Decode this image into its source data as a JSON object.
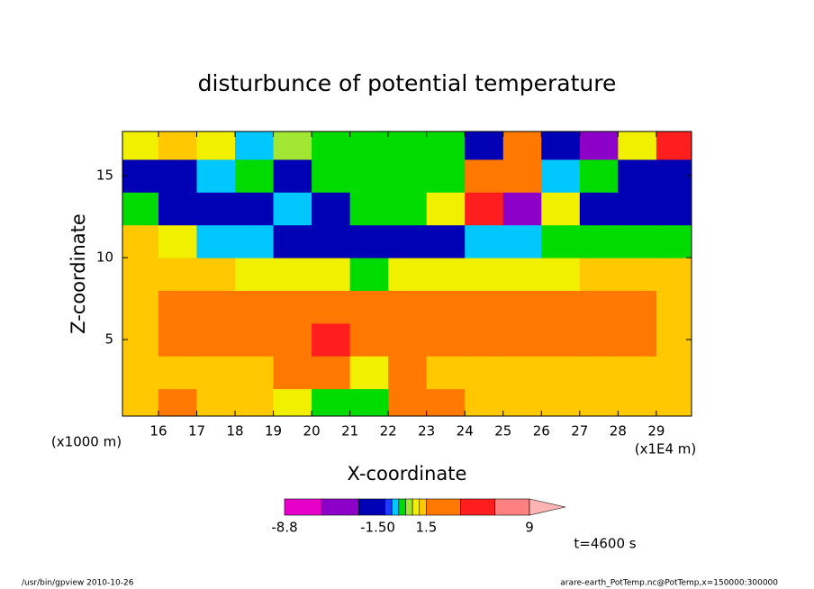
{
  "chart_data": {
    "type": "contour",
    "title": "disturbunce of potential temperature",
    "x_label": "X-coordinate",
    "y_label": "Z-coordinate",
    "x_unit_left": "(x1000 m)",
    "x_unit_right": "(x1E4 m)",
    "time_label": "t=4600 s",
    "footer_left": "/usr/bin/gpview  2010-10-26",
    "footer_right": "arare-earth_PotTemp.nc@PotTemp,x=150000:300000",
    "xlim": [
      15.06,
      29.92
    ],
    "ylim": [
      0.33,
      17.7
    ],
    "xticks": [
      16,
      17,
      18,
      19,
      20,
      21,
      22,
      23,
      24,
      25,
      26,
      27,
      28,
      29
    ],
    "yticks": [
      5,
      10,
      15
    ],
    "x": [
      15.5,
      16.5,
      17.5,
      18.5,
      19.5,
      20.5,
      21.5,
      22.5,
      23.5,
      24.5,
      25.5,
      26.5,
      27.5,
      28.5,
      29.5
    ],
    "y": [
      1,
      3,
      5,
      7,
      9,
      11,
      13,
      15,
      17
    ],
    "z": [
      [
        1.2,
        2,
        1.2,
        1.2,
        0.8,
        -0.2,
        -0.3,
        2,
        2,
        1.2,
        1.2,
        1.2,
        1.2,
        1.2,
        1.2
      ],
      [
        1.2,
        1.2,
        1.2,
        1.2,
        1.5,
        2.5,
        0.5,
        2,
        1.2,
        1,
        1.2,
        1.2,
        1.2,
        1.2,
        1
      ],
      [
        1.2,
        2,
        2.5,
        2.5,
        2.5,
        4.5,
        2,
        2,
        2.5,
        2.5,
        2.5,
        2.5,
        2.5,
        2,
        1.2
      ],
      [
        1.2,
        2.5,
        2.5,
        2.5,
        2.5,
        3,
        2.5,
        2.5,
        2.5,
        2.5,
        2.5,
        2.5,
        2.5,
        2.5,
        1.3
      ],
      [
        1.2,
        1.2,
        1,
        0.8,
        0.5,
        0.5,
        -0.2,
        0.5,
        0.5,
        0.5,
        0.5,
        0.8,
        1,
        1.2,
        1.2
      ],
      [
        1,
        0.5,
        -0.8,
        -0.8,
        -2,
        -2,
        -3,
        -2,
        -2,
        -0.8,
        -0.8,
        -0.2,
        -0.2,
        -0.2,
        -0.2
      ],
      [
        -0.5,
        -2,
        -2,
        -2,
        -0.8,
        -2,
        -0.2,
        -0.2,
        0.5,
        4,
        -4,
        0.5,
        -2,
        -2,
        -2
      ],
      [
        -2,
        -2,
        -0.8,
        -0.5,
        -2,
        -0.2,
        -0.2,
        -0.2,
        -0.5,
        3,
        2,
        -0.8,
        -0.2,
        -2,
        -2
      ],
      [
        0.8,
        1.2,
        0.5,
        -0.8,
        0.2,
        -0.2,
        -0.2,
        -0.2,
        -0.3,
        -2,
        3,
        -2,
        -5,
        0.5,
        5
      ]
    ],
    "levels": [
      -8.8,
      -6.1,
      -3.4,
      -1.5,
      -1.0,
      -0.5,
      0,
      0.5,
      1.0,
      1.5,
      4,
      6.5,
      9
    ],
    "colors": [
      "#e600c8",
      "#8c00c8",
      "#0000b4",
      "#1e3cff",
      "#00c8ff",
      "#00dc00",
      "#a0e632",
      "#f0f000",
      "#ffc800",
      "#ff7800",
      "#ff1e1e",
      "#ff8080"
    ],
    "over_color": "#ffb4b4",
    "colorbar_ticks": [
      -8.8,
      {
        "value": -1.5,
        "label": "-1.50"
      },
      1.5,
      9
    ]
  }
}
